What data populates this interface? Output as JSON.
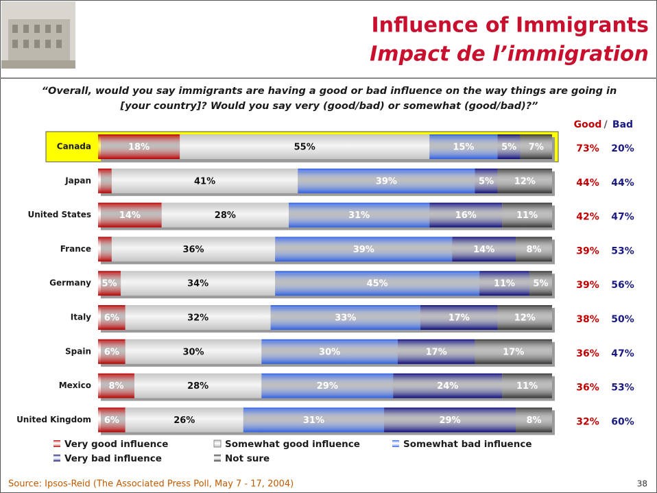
{
  "title": "Influence of Immigrants",
  "subtitle": "Impact de l’immigration",
  "question": [
    "“Overall, would you say immigrants are having a good or bad influence on the way things are going in",
    "[your country]? Would you say very (good/bad) or somewhat (good/bad)?”"
  ],
  "chart_data": {
    "type": "bar",
    "orientation": "horizontal",
    "stacked": true,
    "categories": [
      "Canada",
      "Japan",
      "United States",
      "France",
      "Germany",
      "Italy",
      "Spain",
      "Mexico",
      "United Kingdom"
    ],
    "highlight_category": 0,
    "xlim": [
      0,
      100
    ],
    "series": [
      {
        "name": "Very good influence",
        "color": "#b50000",
        "values": [
          18,
          3,
          14,
          3,
          5,
          6,
          6,
          8,
          6
        ],
        "value_labels": [
          "18%",
          null,
          "14%",
          null,
          "5%",
          "6%",
          "6%",
          "8%",
          "6%"
        ]
      },
      {
        "name": "Somewhat good influence",
        "color": "#c4c4c4",
        "values": [
          55,
          41,
          28,
          36,
          34,
          32,
          30,
          28,
          26
        ],
        "value_labels": [
          "55%",
          "41%",
          "28%",
          "36%",
          "34%",
          "32%",
          "30%",
          "28%",
          "26%"
        ]
      },
      {
        "name": "Somewhat bad influence",
        "color": "#2f5fe0",
        "values": [
          15,
          39,
          31,
          39,
          45,
          33,
          30,
          29,
          31
        ],
        "value_labels": [
          "15%",
          "39%",
          "31%",
          "39%",
          "45%",
          "33%",
          "30%",
          "29%",
          "31%"
        ]
      },
      {
        "name": "Very bad influence",
        "color": "#0c0c7a",
        "values": [
          5,
          5,
          16,
          14,
          11,
          17,
          17,
          24,
          29
        ],
        "value_labels": [
          "5%",
          "5%",
          "16%",
          "14%",
          "11%",
          "17%",
          "17%",
          "24%",
          "29%"
        ]
      },
      {
        "name": "Not sure",
        "color": "#333333",
        "values": [
          7,
          12,
          11,
          8,
          5,
          12,
          17,
          11,
          8
        ],
        "value_labels": [
          "7%",
          "12%",
          "11%",
          "8%",
          "5%",
          "12%",
          "17%",
          "11%",
          "8%"
        ]
      }
    ],
    "summary": {
      "good_label": "Good",
      "separator": "/",
      "bad_label": "Bad",
      "good_color": "#c00000",
      "bad_color": "#1a1a80",
      "good": [
        73,
        44,
        42,
        39,
        39,
        38,
        36,
        36,
        32
      ],
      "good_labels": [
        "73%",
        "44%",
        "42%",
        "39%",
        "39%",
        "38%",
        "36%",
        "36%",
        "32%"
      ],
      "bad": [
        20,
        44,
        47,
        53,
        56,
        50,
        47,
        53,
        60
      ],
      "bad_labels": [
        "20%",
        "44%",
        "47%",
        "53%",
        "56%",
        "50%",
        "47%",
        "53%",
        "60%"
      ]
    }
  },
  "source": "Source: Ipsos-Reid (The Associated Press Poll, May 7 - 17, 2004)",
  "page_number": 38
}
